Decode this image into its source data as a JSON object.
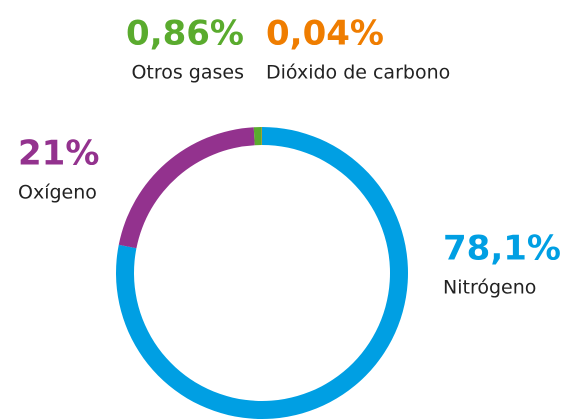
{
  "chart_data": {
    "type": "donut",
    "categories": [
      "Nitrógeno",
      "Oxígeno",
      "Otros gases",
      "Dióxido de carbono"
    ],
    "values": [
      78.1,
      21,
      0.86,
      0.04
    ],
    "value_labels": [
      "78,1%",
      "21%",
      "0,86%",
      "0,04%"
    ],
    "colors": [
      "#009fe3",
      "#93328e",
      "#5aab2e",
      "#ef7d00"
    ]
  }
}
